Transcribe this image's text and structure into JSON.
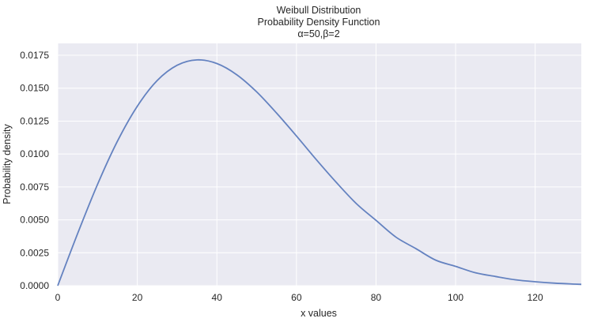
{
  "chart_data": {
    "type": "line",
    "title_lines": [
      "Weibull Distribution",
      "Probability Density Function",
      "α=50,β=2"
    ],
    "xlabel": "x values",
    "ylabel": "Probability density",
    "xlim": [
      0,
      131.6
    ],
    "ylim": [
      0,
      0.0184
    ],
    "xticks": [
      0,
      20,
      40,
      60,
      80,
      100,
      120
    ],
    "xtick_labels": [
      "0",
      "20",
      "40",
      "60",
      "80",
      "100",
      "120"
    ],
    "yticks": [
      0,
      0.0025,
      0.005,
      0.0075,
      0.01,
      0.0125,
      0.015,
      0.0175
    ],
    "ytick_labels": [
      "0.0000",
      "0.0025",
      "0.0050",
      "0.0075",
      "0.0100",
      "0.0125",
      "0.0150",
      "0.0175"
    ],
    "grid": true,
    "background_color": "#eaeaf2",
    "grid_color": "#ffffff",
    "series": [
      {
        "color": "#6482c0",
        "x": [
          0,
          5,
          10,
          15,
          20,
          25,
          30,
          35,
          40,
          45,
          50,
          55,
          60,
          65,
          70,
          75,
          80,
          85,
          90,
          95,
          100,
          105,
          110,
          115,
          120,
          125,
          130,
          131.6
        ],
        "values": [
          0,
          0.00396,
          0.00769,
          0.01097,
          0.01363,
          0.01558,
          0.01674,
          0.01715,
          0.01687,
          0.01602,
          0.01472,
          0.01311,
          0.01137,
          0.00957,
          0.00785,
          0.00625,
          0.00496,
          0.00369,
          0.00282,
          0.00194,
          0.00147,
          0.00098,
          0.0007,
          0.00045,
          0.0003,
          0.00019,
          0.00012,
          0.0001
        ]
      }
    ]
  }
}
